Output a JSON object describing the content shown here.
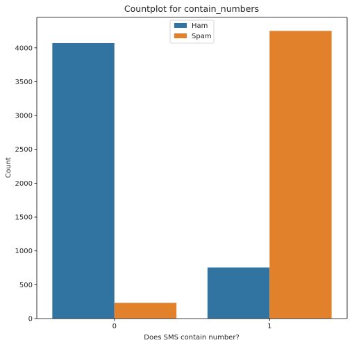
{
  "chart_data": {
    "type": "bar",
    "title": "Countplot for contain_numbers",
    "xlabel": "Does SMS contain number?",
    "ylabel": "Count",
    "categories": [
      "0",
      "1"
    ],
    "ylim": [
      0,
      4450
    ],
    "yticks": [
      0,
      500,
      1000,
      1500,
      2000,
      2500,
      3000,
      3500,
      4000
    ],
    "grid": false,
    "legend_position": "top-center",
    "series": [
      {
        "name": "Ham",
        "color": "#3274a1",
        "values": [
          4070,
          755
        ]
      },
      {
        "name": "Spam",
        "color": "#e1812c",
        "values": [
          232,
          4250
        ]
      }
    ]
  }
}
